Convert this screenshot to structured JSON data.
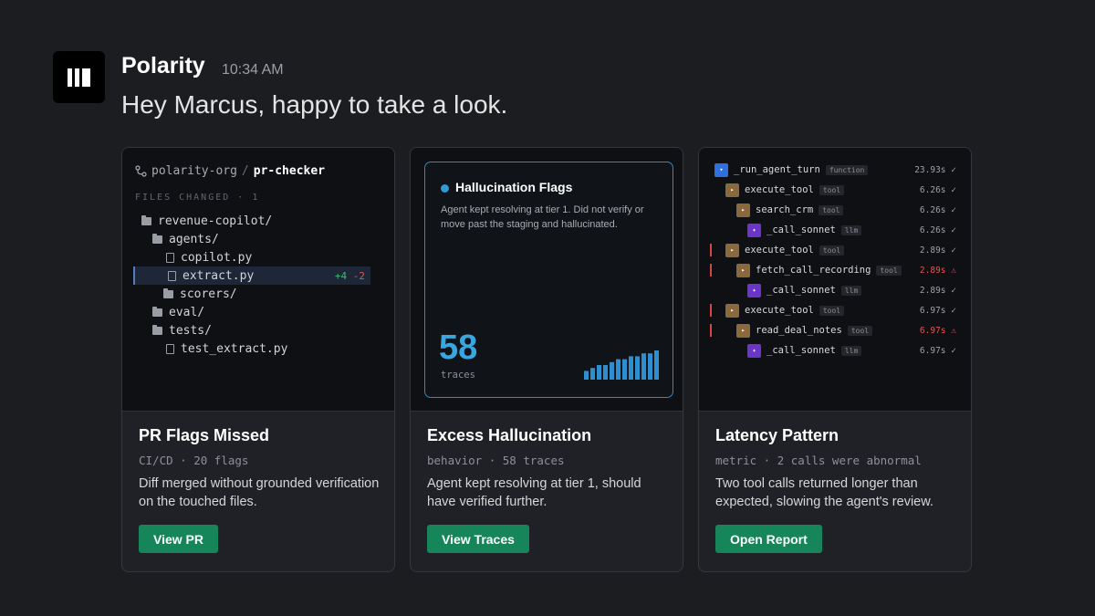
{
  "header": {
    "app_name": "Polarity",
    "timestamp": "10:34 AM",
    "message": "Hey Marcus, happy to take a look."
  },
  "cards": [
    {
      "preview": {
        "org": "polarity-org",
        "separator": "/",
        "repo": "pr-checker",
        "files_label": "FILES CHANGED · 1",
        "tree": [
          {
            "name": "revenue-copilot/",
            "type": "folder",
            "depth": 0
          },
          {
            "name": "agents/",
            "type": "folder",
            "depth": 1
          },
          {
            "name": "copilot.py",
            "type": "file",
            "depth": 2
          },
          {
            "name": "extract.py",
            "type": "file",
            "depth": 2,
            "selected": true,
            "added": "+4",
            "removed": "-2"
          },
          {
            "name": "scorers/",
            "type": "folder",
            "depth": 2
          },
          {
            "name": "eval/",
            "type": "folder",
            "depth": 1
          },
          {
            "name": "tests/",
            "type": "folder",
            "depth": 1
          },
          {
            "name": "test_extract.py",
            "type": "file",
            "depth": 2
          }
        ]
      },
      "title": "PR Flags Missed",
      "meta": "CI/CD · 20 flags",
      "description": "Diff merged without grounded verification on the touched files.",
      "button": "View PR"
    },
    {
      "preview": {
        "title": "Hallucination Flags",
        "description": "Agent kept resolving at tier 1. Did not verify or move past the staging and hallucinated.",
        "count": "58",
        "count_label": "traces",
        "sparkline": [
          3,
          4,
          5,
          5,
          6,
          7,
          7,
          8,
          8,
          9,
          9,
          10
        ]
      },
      "title": "Excess Hallucination",
      "meta": "behavior · 58 traces",
      "description": "Agent kept resolving at tier 1, should have verified further.",
      "button": "View Traces"
    },
    {
      "preview": {
        "rows": [
          {
            "name": "_run_agent_turn",
            "tag": "function",
            "kind": "fn",
            "time": "23.93s",
            "status": "✓",
            "depth": 0,
            "flag": false,
            "warn": false
          },
          {
            "name": "execute_tool",
            "tag": "tool",
            "kind": "tool",
            "time": "6.26s",
            "status": "✓",
            "depth": 1,
            "flag": false,
            "warn": false
          },
          {
            "name": "search_crm",
            "tag": "tool",
            "kind": "tool",
            "time": "6.26s",
            "status": "✓",
            "depth": 2,
            "flag": false,
            "warn": false
          },
          {
            "name": "_call_sonnet",
            "tag": "llm",
            "kind": "llm",
            "time": "6.26s",
            "status": "✓",
            "depth": 3,
            "flag": false,
            "warn": false
          },
          {
            "name": "execute_tool",
            "tag": "tool",
            "kind": "tool",
            "time": "2.89s",
            "status": "✓",
            "depth": 1,
            "flag": true,
            "warn": false
          },
          {
            "name": "fetch_call_recording",
            "tag": "tool",
            "kind": "tool",
            "time": "2.89s",
            "status": "⚠",
            "depth": 2,
            "flag": true,
            "warn": true
          },
          {
            "name": "_call_sonnet",
            "tag": "llm",
            "kind": "llm",
            "time": "2.89s",
            "status": "✓",
            "depth": 3,
            "flag": false,
            "warn": false
          },
          {
            "name": "execute_tool",
            "tag": "tool",
            "kind": "tool",
            "time": "6.97s",
            "status": "✓",
            "depth": 1,
            "flag": true,
            "warn": false
          },
          {
            "name": "read_deal_notes",
            "tag": "tool",
            "kind": "tool",
            "time": "6.97s",
            "status": "⚠",
            "depth": 2,
            "flag": true,
            "warn": true
          },
          {
            "name": "_call_sonnet",
            "tag": "llm",
            "kind": "llm",
            "time": "6.97s",
            "status": "✓",
            "depth": 3,
            "flag": false,
            "warn": false
          }
        ]
      },
      "title": "Latency Pattern",
      "meta": "metric · 2 calls were abnormal",
      "description": "Two tool calls returned longer than expected, slowing the agent's review.",
      "button": "Open Report"
    }
  ]
}
